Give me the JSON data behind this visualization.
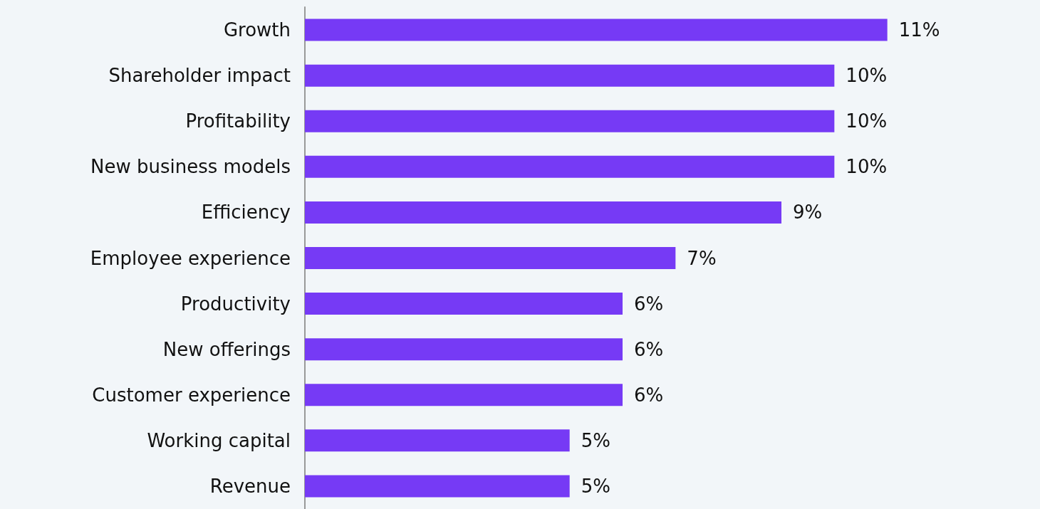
{
  "chart_data": {
    "type": "bar",
    "orientation": "horizontal",
    "categories": [
      "Growth",
      "Shareholder impact",
      "Profitability",
      "New business models",
      "Efficiency",
      "Employee experience",
      "Productivity",
      "New offerings",
      "Customer experience",
      "Working capital",
      "Revenue"
    ],
    "values": [
      11,
      10,
      10,
      10,
      9,
      7,
      6,
      6,
      6,
      5,
      5
    ],
    "value_labels": [
      "11%",
      "10%",
      "10%",
      "10%",
      "9%",
      "7%",
      "6%",
      "6%",
      "6%",
      "5%",
      "5%"
    ],
    "color": "#763af5"
  }
}
